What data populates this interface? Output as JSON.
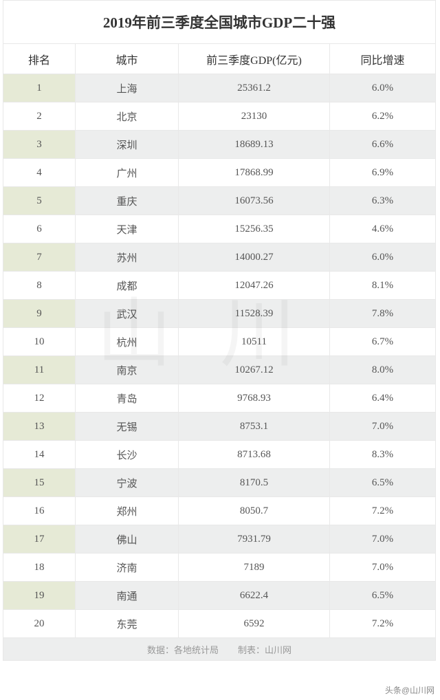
{
  "title": "2019年前三季度全国城市GDP二十强",
  "columns": {
    "rank": "排名",
    "city": "城市",
    "gdp": "前三季度GDP(亿元)",
    "growth": "同比增速"
  },
  "rows": [
    {
      "rank": "1",
      "city": "上海",
      "gdp": "25361.2",
      "growth": "6.0%"
    },
    {
      "rank": "2",
      "city": "北京",
      "gdp": "23130",
      "growth": "6.2%"
    },
    {
      "rank": "3",
      "city": "深圳",
      "gdp": "18689.13",
      "growth": "6.6%"
    },
    {
      "rank": "4",
      "city": "广州",
      "gdp": "17868.99",
      "growth": "6.9%"
    },
    {
      "rank": "5",
      "city": "重庆",
      "gdp": "16073.56",
      "growth": "6.3%"
    },
    {
      "rank": "6",
      "city": "天津",
      "gdp": "15256.35",
      "growth": "4.6%"
    },
    {
      "rank": "7",
      "city": "苏州",
      "gdp": "14000.27",
      "growth": "6.0%"
    },
    {
      "rank": "8",
      "city": "成都",
      "gdp": "12047.26",
      "growth": "8.1%"
    },
    {
      "rank": "9",
      "city": "武汉",
      "gdp": "11528.39",
      "growth": "7.8%"
    },
    {
      "rank": "10",
      "city": "杭州",
      "gdp": "10511",
      "growth": "6.7%"
    },
    {
      "rank": "11",
      "city": "南京",
      "gdp": "10267.12",
      "growth": "8.0%"
    },
    {
      "rank": "12",
      "city": "青岛",
      "gdp": "9768.93",
      "growth": "6.4%"
    },
    {
      "rank": "13",
      "city": "无锡",
      "gdp": "8753.1",
      "growth": "7.0%"
    },
    {
      "rank": "14",
      "city": "长沙",
      "gdp": "8713.68",
      "growth": "8.3%"
    },
    {
      "rank": "15",
      "city": "宁波",
      "gdp": "8170.5",
      "growth": "6.5%"
    },
    {
      "rank": "16",
      "city": "郑州",
      "gdp": "8050.7",
      "growth": "7.2%"
    },
    {
      "rank": "17",
      "city": "佛山",
      "gdp": "7931.79",
      "growth": "7.0%"
    },
    {
      "rank": "18",
      "city": "济南",
      "gdp": "7189",
      "growth": "7.0%"
    },
    {
      "rank": "19",
      "city": "南通",
      "gdp": "6622.4",
      "growth": "6.5%"
    },
    {
      "rank": "20",
      "city": "东莞",
      "gdp": "6592",
      "growth": "7.2%"
    }
  ],
  "footer": {
    "source": "数据：各地统计局",
    "maker": "制表：山川网"
  },
  "attribution": "头条@山川网",
  "watermark": "山川"
}
